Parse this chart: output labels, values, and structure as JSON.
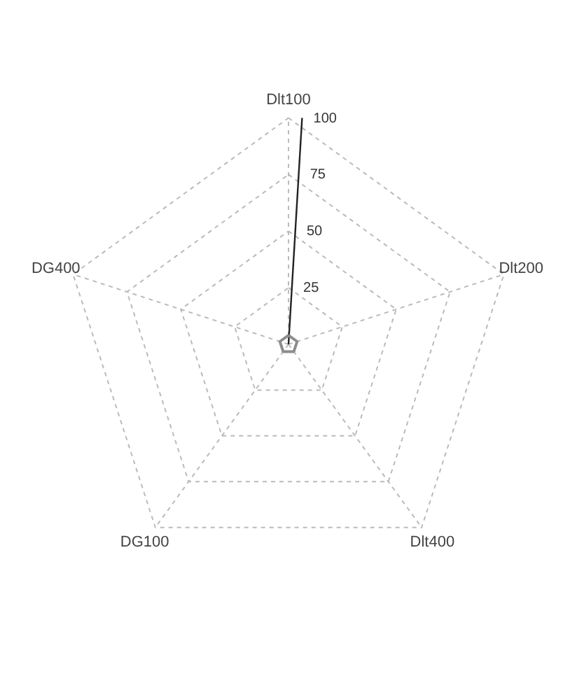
{
  "chart_data": {
    "type": "radar",
    "categories": [
      "Dlt100",
      "Dlt200",
      "Dlt400",
      "DG100",
      "DG400"
    ],
    "series": [
      {
        "color": "#8c8c8c",
        "values": [
          4,
          4,
          4,
          4,
          4
        ]
      }
    ],
    "ylim": [
      0,
      100
    ],
    "yticks": [
      25,
      50,
      75,
      100
    ],
    "grid": true
  }
}
